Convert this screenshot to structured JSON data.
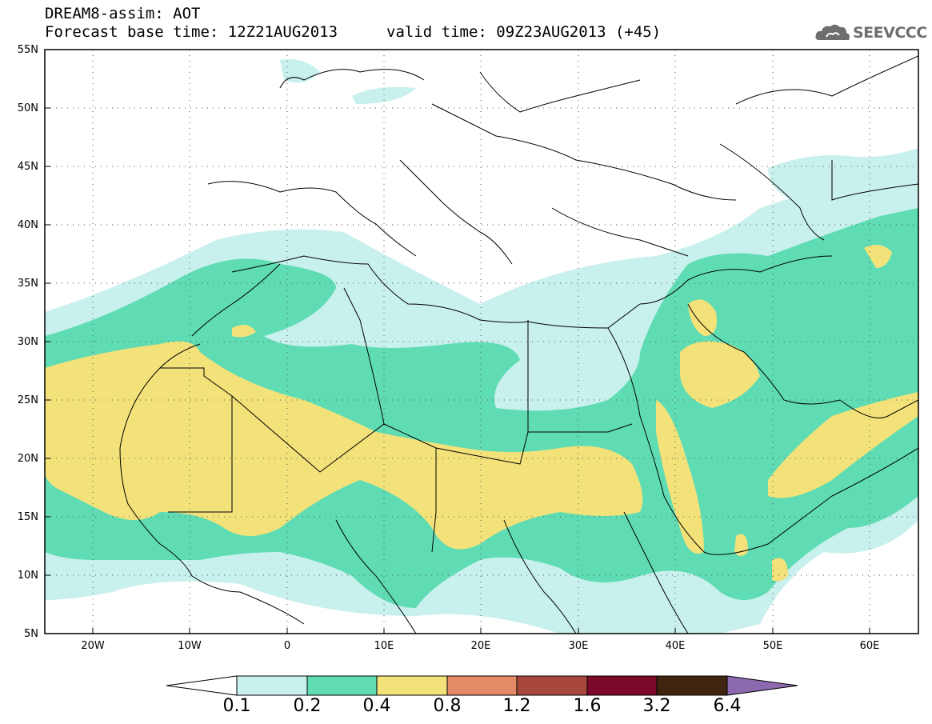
{
  "header": {
    "model_title": "DREAM8-assim: AOT",
    "base_time": "Forecast base time: 12Z21AUG2013",
    "valid_time": "valid time: 09Z23AUG2013 (+45)"
  },
  "logo": {
    "text": "SEEVCCC",
    "icon": "cloud-icon"
  },
  "map": {
    "lat_labels": [
      "55N",
      "50N",
      "45N",
      "40N",
      "35N",
      "30N",
      "25N",
      "20N",
      "15N",
      "10N",
      "5N"
    ],
    "lon_labels": [
      "20W",
      "10W",
      "0",
      "10E",
      "20E",
      "30E",
      "40E",
      "50E",
      "60E"
    ],
    "lon_range": [
      "25W",
      "65E"
    ],
    "lat_range": [
      "5N",
      "55N"
    ],
    "grid": "dotted"
  },
  "colorbar": {
    "labels": [
      "0.1",
      "0.2",
      "0.4",
      "0.8",
      "1.2",
      "1.6",
      "3.2",
      "6.4"
    ],
    "colors": [
      "#ffffff",
      "#c8f0ec",
      "#5fdcb3",
      "#f3e27a",
      "#e58a66",
      "#a8483d",
      "#7d0a2a",
      "#3f2410",
      "#8d6ab0"
    ]
  }
}
